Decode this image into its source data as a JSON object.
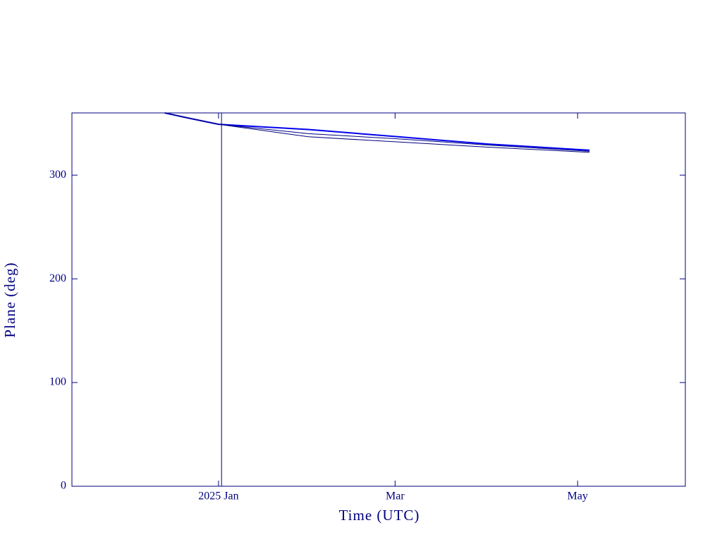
{
  "chart_data": {
    "type": "line",
    "x_label": "Time (UTC)",
    "y_label": "Plane (deg)",
    "xlim": [
      -49,
      156
    ],
    "ylim": [
      0,
      360
    ],
    "xticks": [
      {
        "value": 0,
        "label": "2025 Jan"
      },
      {
        "value": 59,
        "label": "Mar"
      },
      {
        "value": 120,
        "label": "May"
      }
    ],
    "yticks": [
      0,
      100,
      200,
      300
    ],
    "vline": 1,
    "axis_color": "#000080",
    "series": [
      {
        "color": "#0000ee",
        "x": [
          -18,
          -10,
          0,
          30,
          60,
          90,
          124
        ],
        "values": [
          360,
          355,
          349,
          344,
          337,
          330,
          324
        ]
      },
      {
        "color": "#000080",
        "x": [
          -18,
          -10,
          0,
          30,
          60,
          90,
          124
        ],
        "values": [
          360,
          355,
          349,
          340,
          335,
          329,
          323
        ]
      },
      {
        "color": "#000080",
        "x": [
          -18,
          -10,
          0,
          30,
          60,
          90,
          124
        ],
        "values": [
          360,
          355,
          349,
          337,
          332,
          327,
          322
        ]
      }
    ]
  }
}
